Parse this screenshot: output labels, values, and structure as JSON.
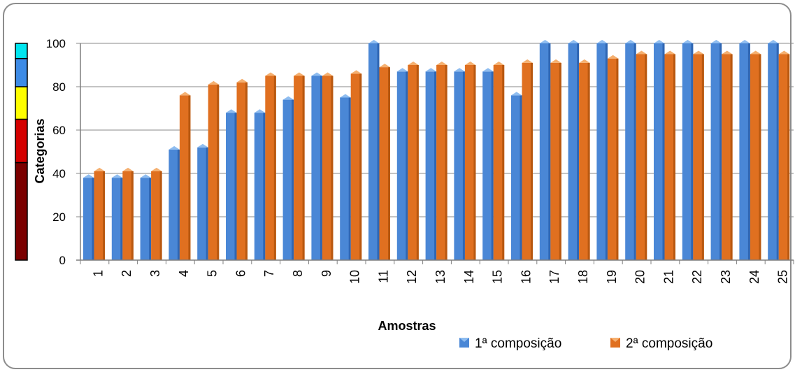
{
  "chart_data": {
    "type": "bar",
    "title": "",
    "xlabel": "Amostras",
    "ylabel": "Categorias",
    "ylim": [
      0,
      100
    ],
    "yticks": [
      0,
      20,
      40,
      60,
      80,
      100
    ],
    "grid": true,
    "legend_position": "bottom-right",
    "categories": [
      "1",
      "2",
      "3",
      "4",
      "5",
      "6",
      "7",
      "8",
      "9",
      "10",
      "11",
      "12",
      "13",
      "14",
      "15",
      "16",
      "17",
      "18",
      "19",
      "20",
      "21",
      "22",
      "23",
      "24",
      "25"
    ],
    "series": [
      {
        "name": "1ª composição",
        "color": "#4a87d6",
        "values": [
          38,
          38,
          38,
          51,
          52,
          68,
          68,
          74,
          85,
          75,
          100,
          87,
          87,
          87,
          87,
          76,
          100,
          100,
          100,
          100,
          100,
          100,
          100,
          100,
          100
        ]
      },
      {
        "name": "2ª composição",
        "color": "#e07020",
        "values": [
          41,
          41,
          41,
          76,
          81,
          82,
          85,
          85,
          85,
          86,
          89,
          90,
          90,
          90,
          90,
          91,
          91,
          91,
          93,
          95,
          95,
          95,
          95,
          95,
          95
        ]
      }
    ],
    "category_scale": [
      {
        "from": 0,
        "to": 45,
        "color": "#7b0000"
      },
      {
        "from": 45,
        "to": 65,
        "color": "#d40000"
      },
      {
        "from": 65,
        "to": 80,
        "color": "#ffff00"
      },
      {
        "from": 80,
        "to": 93,
        "color": "#3d8be6"
      },
      {
        "from": 93,
        "to": 100,
        "color": "#00e6f0"
      }
    ]
  }
}
